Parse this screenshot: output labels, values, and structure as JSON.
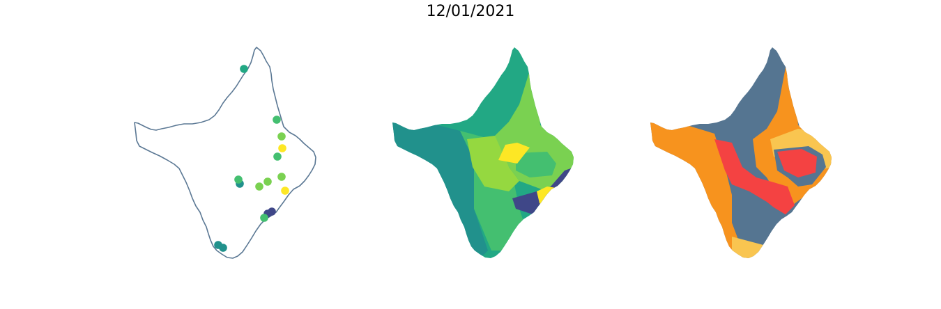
{
  "title": "12/01/2021",
  "colors": {
    "outline": "#5b7894",
    "viridis_dark": "#3f4788",
    "viridis_teal": "#21918c",
    "viridis_green": "#22a884",
    "viridis_mid": "#44bf70",
    "viridis_light": "#7ad151",
    "viridis_yellowgreen": "#95d840",
    "viridis_yellow": "#fde725",
    "cat_slate": "#557591",
    "cat_orange": "#f7931e",
    "cat_red": "#f44242",
    "cat_gold": "#f9c550"
  },
  "points": [
    {
      "id": 1,
      "color": "viridis_green"
    },
    {
      "id": 2,
      "color": "viridis_mid"
    },
    {
      "id": 3,
      "color": "viridis_light"
    },
    {
      "id": 4,
      "color": "viridis_yellow"
    },
    {
      "id": 5,
      "color": "viridis_mid"
    },
    {
      "id": 6,
      "color": "viridis_light"
    },
    {
      "id": 7,
      "color": "viridis_teal"
    },
    {
      "id": 8,
      "color": "viridis_mid"
    },
    {
      "id": 9,
      "color": "viridis_light"
    },
    {
      "id": 10,
      "color": "viridis_light"
    },
    {
      "id": 11,
      "color": "viridis_yellow"
    },
    {
      "id": 12,
      "color": "viridis_dark"
    },
    {
      "id": 13,
      "color": "viridis_dark"
    },
    {
      "id": 14,
      "color": "viridis_mid"
    },
    {
      "id": 15,
      "color": "viridis_teal"
    },
    {
      "id": 16,
      "color": "viridis_teal"
    }
  ]
}
